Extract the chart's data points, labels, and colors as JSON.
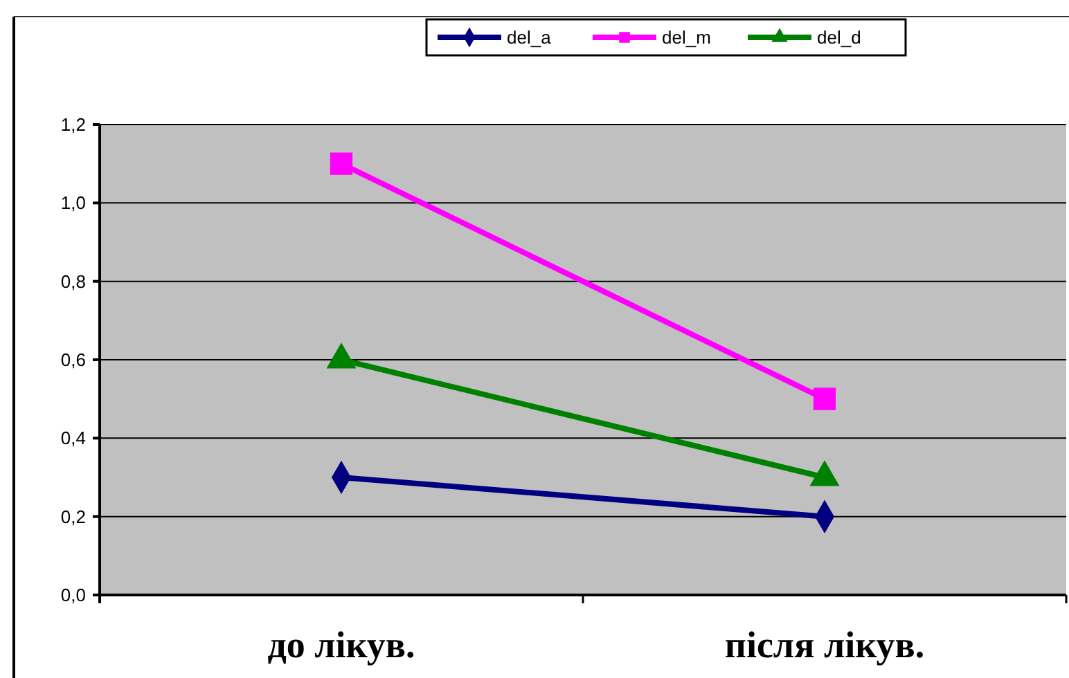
{
  "chart_data": {
    "type": "line",
    "categories": [
      "до лікув.",
      "після лікув."
    ],
    "series": [
      {
        "name": "del_a",
        "color": "#000080",
        "values": [
          0.3,
          0.2
        ],
        "marker": "diamond"
      },
      {
        "name": "del_m",
        "color": "#ff00ff",
        "values": [
          1.1,
          0.5
        ],
        "marker": "square"
      },
      {
        "name": "del_d",
        "color": "#008000",
        "values": [
          0.6,
          0.3
        ],
        "marker": "triangle"
      }
    ],
    "ylim": [
      0,
      1.2
    ],
    "yticks": [
      {
        "value": 0,
        "label": "0,0"
      },
      {
        "value": 0.2,
        "label": "0,2"
      },
      {
        "value": 0.4,
        "label": "0,4"
      },
      {
        "value": 0.6,
        "label": "0,6"
      },
      {
        "value": 0.8,
        "label": "0,8"
      },
      {
        "value": 1,
        "label": "1,0"
      },
      {
        "value": 1.2,
        "label": "1,2"
      }
    ],
    "grid": "y",
    "legend": "top"
  }
}
